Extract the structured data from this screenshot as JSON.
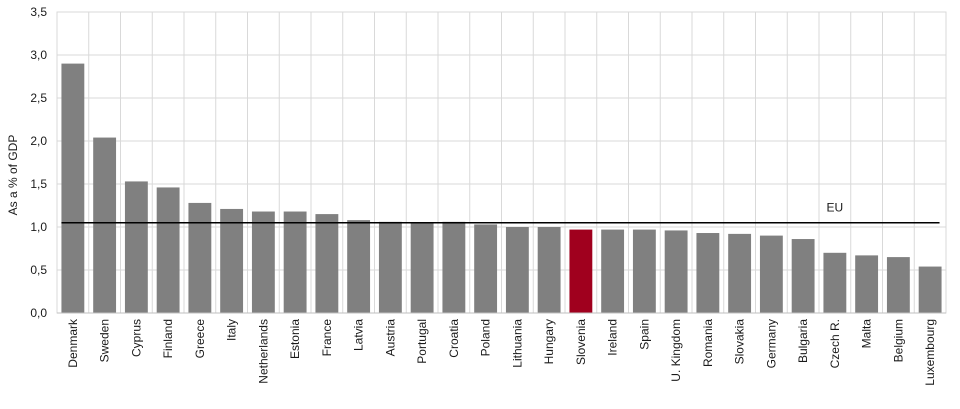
{
  "chart_data": {
    "type": "bar",
    "ylabel": "As a % of GDP",
    "ylim": [
      0,
      3.5
    ],
    "yticks": [
      "0,0",
      "0,5",
      "1,0",
      "1,5",
      "2,0",
      "2,5",
      "3,0",
      "3,5"
    ],
    "grid": true,
    "categories": [
      "Denmark",
      "Sweden",
      "Cyprus",
      "Finland",
      "Greece",
      "Italy",
      "Netherlands",
      "Estonia",
      "France",
      "Latvia",
      "Austria",
      "Portugal",
      "Croatia",
      "Poland",
      "Lithuania",
      "Hungary",
      "Slovenia",
      "Ireland",
      "Spain",
      "U. Kingdom",
      "Romania",
      "Slovakia",
      "Germany",
      "Bulgaria",
      "Czech R.",
      "Malta",
      "Belgium",
      "Luxembourg"
    ],
    "values": [
      2.9,
      2.04,
      1.53,
      1.46,
      1.28,
      1.21,
      1.18,
      1.18,
      1.15,
      1.08,
      1.06,
      1.05,
      1.06,
      1.03,
      1.0,
      1.0,
      0.97,
      0.97,
      0.97,
      0.96,
      0.93,
      0.92,
      0.9,
      0.86,
      0.7,
      0.67,
      0.65,
      0.54
    ],
    "highlight": "Slovenia",
    "colors": {
      "bar": "#808080",
      "highlight": "#a0001e",
      "grid": "#d9d9d9",
      "reference": "#000000"
    },
    "reference_line": {
      "label": "EU",
      "value": 1.05
    }
  }
}
